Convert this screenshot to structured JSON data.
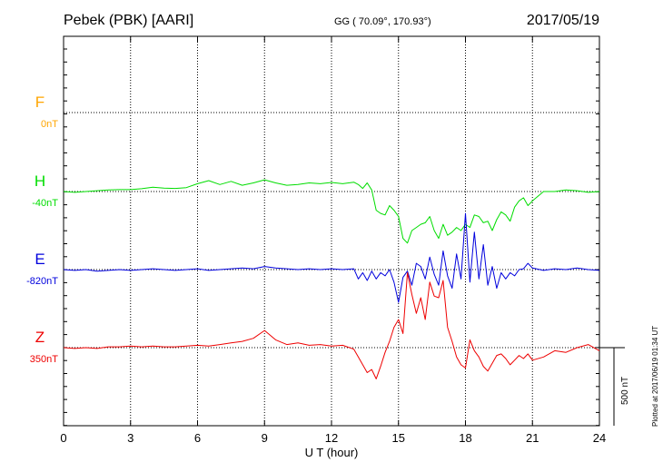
{
  "header": {
    "station": "Pebek (PBK)  [AARI]",
    "coords": "GG ( 70.09°, 170.93°)",
    "date": "2017/05/19"
  },
  "footer": {
    "plotted": "Plotted at 2017/06/19 01:34 UT"
  },
  "chart_data": {
    "type": "line",
    "title": "",
    "xlabel": "U T (hour)",
    "xlim": [
      0,
      24
    ],
    "xticks": [
      "0",
      "3",
      "6",
      "9",
      "12",
      "15",
      "18",
      "21",
      "24"
    ],
    "grid": true,
    "scale_bar": {
      "label": "500 nT",
      "value": 500
    },
    "series": [
      {
        "name": "F",
        "baseline": "0nT",
        "color": "#ffa500",
        "values_nT": [],
        "x": []
      },
      {
        "name": "H",
        "baseline": "-40nT",
        "color": "#00dd00",
        "x": [
          0,
          0.5,
          1,
          1.5,
          2,
          2.5,
          3,
          3.5,
          4,
          4.5,
          5,
          5.5,
          6,
          6.5,
          7,
          7.5,
          8,
          8.5,
          9,
          9.5,
          10,
          10.5,
          11,
          11.5,
          12,
          12.5,
          13,
          13.2,
          13.4,
          13.6,
          13.8,
          14,
          14.2,
          14.4,
          14.6,
          14.8,
          15,
          15.2,
          15.4,
          15.6,
          15.8,
          16,
          16.2,
          16.4,
          16.6,
          16.8,
          17,
          17.2,
          17.4,
          17.6,
          17.8,
          18,
          18.2,
          18.4,
          18.6,
          18.8,
          19,
          19.2,
          19.4,
          19.6,
          19.8,
          20,
          20.2,
          20.4,
          20.6,
          20.8,
          21,
          21.5,
          22,
          22.5,
          23,
          23.5,
          24
        ],
        "values_nT": [
          0,
          -5,
          0,
          5,
          10,
          12,
          12,
          18,
          28,
          22,
          20,
          25,
          50,
          70,
          45,
          65,
          40,
          55,
          75,
          55,
          40,
          45,
          55,
          50,
          58,
          50,
          60,
          45,
          20,
          55,
          10,
          -120,
          -140,
          -150,
          -90,
          -120,
          -160,
          -300,
          -330,
          -250,
          -230,
          -210,
          -200,
          -160,
          -250,
          -300,
          -210,
          -280,
          -260,
          -230,
          -250,
          -210,
          -230,
          -150,
          -160,
          -200,
          -190,
          -250,
          -180,
          -130,
          -150,
          -190,
          -100,
          -60,
          -40,
          -90,
          -60,
          0,
          0,
          10,
          5,
          -5,
          0
        ]
      },
      {
        "name": "E",
        "baseline": "-820nT",
        "color": "#0000dd",
        "x": [
          0,
          0.5,
          1,
          1.5,
          2,
          2.5,
          3,
          3.5,
          4,
          4.5,
          5,
          5.5,
          6,
          6.5,
          7,
          7.5,
          8,
          8.5,
          9,
          9.5,
          10,
          10.5,
          11,
          11.5,
          12,
          12.5,
          13,
          13.2,
          13.4,
          13.6,
          13.8,
          14,
          14.2,
          14.4,
          14.6,
          14.8,
          15,
          15.2,
          15.4,
          15.6,
          15.8,
          16,
          16.2,
          16.4,
          16.6,
          16.8,
          17,
          17.2,
          17.4,
          17.6,
          17.8,
          18,
          18.2,
          18.4,
          18.6,
          18.8,
          19,
          19.2,
          19.4,
          19.6,
          19.8,
          20,
          20.2,
          20.4,
          20.6,
          20.8,
          21,
          21.5,
          22,
          22.5,
          23,
          23.5,
          24
        ],
        "values_nT": [
          0,
          -5,
          0,
          -10,
          -5,
          0,
          -5,
          0,
          5,
          0,
          -5,
          0,
          5,
          -5,
          0,
          5,
          10,
          5,
          20,
          10,
          5,
          0,
          5,
          0,
          5,
          0,
          5,
          -60,
          -20,
          -70,
          -10,
          -60,
          -20,
          -40,
          0,
          -80,
          -210,
          -50,
          -10,
          -100,
          40,
          20,
          -60,
          80,
          -30,
          -100,
          120,
          -40,
          -120,
          100,
          -60,
          360,
          -80,
          240,
          -60,
          160,
          -100,
          20,
          -120,
          -20,
          -60,
          -20,
          -40,
          0,
          5,
          40,
          10,
          -5,
          5,
          0,
          10,
          0,
          -5
        ]
      },
      {
        "name": "Z",
        "baseline": "350nT",
        "color": "#ee0000",
        "x": [
          0,
          0.5,
          1,
          1.5,
          2,
          2.5,
          3,
          3.5,
          4,
          4.5,
          5,
          5.5,
          6,
          6.5,
          7,
          7.5,
          8,
          8.5,
          9,
          9.5,
          10,
          10.5,
          11,
          11.5,
          12,
          12.5,
          13,
          13.2,
          13.4,
          13.6,
          13.8,
          14,
          14.2,
          14.4,
          14.6,
          14.8,
          15,
          15.2,
          15.4,
          15.6,
          15.8,
          16,
          16.2,
          16.4,
          16.6,
          16.8,
          17,
          17.2,
          17.4,
          17.6,
          17.8,
          18,
          18.2,
          18.4,
          18.6,
          18.8,
          19,
          19.2,
          19.4,
          19.6,
          19.8,
          20,
          20.2,
          20.4,
          20.6,
          20.8,
          21,
          21.5,
          22,
          22.5,
          23,
          23.5,
          24
        ],
        "values_nT": [
          0,
          -5,
          0,
          -5,
          5,
          5,
          10,
          5,
          10,
          5,
          5,
          10,
          15,
          10,
          20,
          30,
          40,
          60,
          110,
          50,
          20,
          30,
          15,
          20,
          10,
          15,
          -10,
          -60,
          -110,
          -160,
          -140,
          -200,
          -120,
          -30,
          40,
          130,
          180,
          90,
          480,
          340,
          220,
          320,
          180,
          420,
          330,
          320,
          430,
          130,
          40,
          -60,
          -110,
          -130,
          50,
          -20,
          -60,
          -120,
          -150,
          -100,
          -50,
          -40,
          -70,
          -110,
          -80,
          -50,
          -70,
          -40,
          -80,
          -60,
          -20,
          -30,
          0,
          20,
          -20
        ]
      }
    ]
  }
}
